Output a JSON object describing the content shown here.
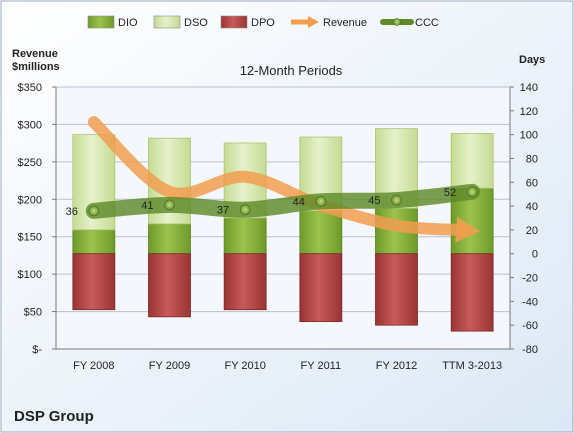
{
  "chart_data": {
    "type": "bar",
    "title": "12-Month Periods",
    "company": "DSP Group",
    "y_left_label": [
      "Revenue",
      "$millions"
    ],
    "y_right_label": "Days",
    "categories": [
      "FY 2008",
      "FY 2009",
      "FY 2010",
      "FY 2011",
      "FY 2012",
      "TTM 3-2013"
    ],
    "left_axis": {
      "range": [
        0,
        350
      ],
      "ticks": [
        0,
        50,
        100,
        150,
        200,
        250,
        300,
        350
      ],
      "tick_labels": [
        "$-",
        "$50",
        "$100",
        "$150",
        "$200",
        "$250",
        "$300",
        "$350"
      ]
    },
    "right_axis": {
      "range": [
        -80,
        140
      ],
      "ticks": [
        -80,
        -60,
        -40,
        -20,
        0,
        20,
        40,
        60,
        80,
        100,
        120,
        140
      ]
    },
    "legend": {
      "placement": "top",
      "entries": [
        {
          "name": "DIO",
          "kind": "bar",
          "color": "#8AB43A"
        },
        {
          "name": "DSO",
          "kind": "bar",
          "color": "#D7E8AE"
        },
        {
          "name": "DPO",
          "kind": "bar",
          "color": "#B84A4A"
        },
        {
          "name": "Revenue",
          "kind": "arrow",
          "color": "#F19E4F"
        },
        {
          "name": "CCC",
          "kind": "line-marker",
          "color": "#5E8A2A"
        }
      ]
    },
    "series": [
      {
        "name": "DIO",
        "axis": "right",
        "stack": "positive",
        "values": [
          20,
          25,
          30,
          36,
          38,
          55
        ],
        "color": "#8AB43A"
      },
      {
        "name": "DSO",
        "axis": "right",
        "stack": "positive",
        "values": [
          80,
          72,
          63,
          62,
          67,
          46
        ],
        "color": "#D7E8AE"
      },
      {
        "name": "DPO",
        "axis": "right",
        "stack": "negative",
        "values": [
          -47,
          -53,
          -47,
          -57,
          -60,
          -65
        ],
        "color": "#B84A4A"
      },
      {
        "name": "Revenue",
        "axis": "left",
        "kind": "line",
        "values": [
          303,
          210,
          230,
          192,
          165,
          158
        ],
        "color": "#F19E4F"
      },
      {
        "name": "CCC",
        "axis": "right",
        "kind": "line",
        "values": [
          36,
          41,
          37,
          44,
          45,
          52
        ],
        "labels": [
          "36",
          "41",
          "37",
          "44",
          "45",
          "52"
        ],
        "color": "#5E8A2A"
      }
    ],
    "grid": true
  }
}
